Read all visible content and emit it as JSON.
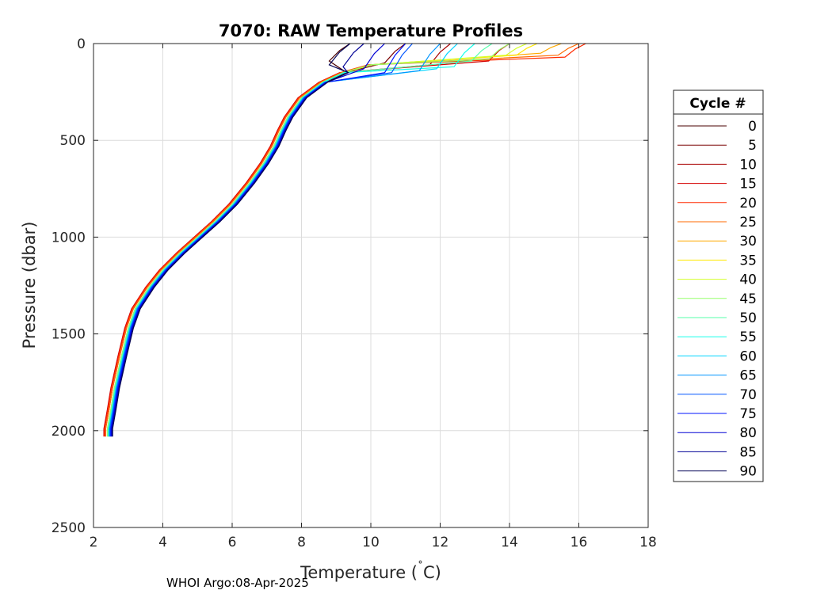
{
  "chart_data": {
    "type": "line",
    "title": "7070: RAW Temperature Profiles",
    "xlabel": "Temperature (°C)",
    "xlabel_main": "Temperature (",
    "xlabel_degree": "˚",
    "xlabel_unit": "C)",
    "ylabel": "Pressure (dbar)",
    "xlim": [
      2,
      18
    ],
    "ylim": [
      0,
      2500
    ],
    "y_reversed": true,
    "xticks": [
      2,
      4,
      6,
      8,
      10,
      12,
      14,
      16,
      18
    ],
    "yticks": [
      0,
      500,
      1000,
      1500,
      2000,
      2500
    ],
    "grid": true,
    "legend": {
      "title": "Cycle #",
      "placement": "outside-right",
      "entries": [
        "0",
        "5",
        "10",
        "15",
        "20",
        "25",
        "30",
        "35",
        "40",
        "45",
        "50",
        "55",
        "60",
        "65",
        "70",
        "75",
        "80",
        "85",
        "90"
      ],
      "colors": [
        "#4a0000",
        "#7a0000",
        "#a80000",
        "#d40000",
        "#ff2a00",
        "#ff6a00",
        "#ffaa00",
        "#ffea00",
        "#d4ff2a",
        "#95ff6a",
        "#55ffaa",
        "#15ffea",
        "#00d5ff",
        "#0095ff",
        "#0055ff",
        "#0015ff",
        "#0000d4",
        "#000095",
        "#000055"
      ]
    },
    "profile_shape": {
      "temperature": [
        16.0,
        12.0,
        10.0,
        9.2,
        8.6,
        8.0,
        7.6,
        7.4,
        7.2,
        6.9,
        6.5,
        6.0,
        5.5,
        5.0,
        4.5,
        4.0,
        3.6,
        3.2,
        3.0,
        2.8,
        2.6,
        2.5,
        2.4,
        2.4
      ],
      "pressure": [
        0,
        60,
        110,
        150,
        200,
        280,
        380,
        450,
        530,
        620,
        720,
        830,
        920,
        1000,
        1080,
        1170,
        1260,
        1370,
        1470,
        1620,
        1780,
        1890,
        1990,
        2030
      ]
    },
    "series": [
      {
        "name": "0",
        "surface_temp": 9.4,
        "cline_depth": 90,
        "offset": 0.1
      },
      {
        "name": "5",
        "surface_temp": 11.0,
        "cline_depth": 100,
        "offset": 0.05
      },
      {
        "name": "10",
        "surface_temp": 12.3,
        "cline_depth": 110,
        "offset": -0.05
      },
      {
        "name": "15",
        "surface_temp": 14.0,
        "cline_depth": 90,
        "offset": -0.1
      },
      {
        "name": "20",
        "surface_temp": 16.2,
        "cline_depth": 70,
        "offset": -0.08
      },
      {
        "name": "25",
        "surface_temp": 16.0,
        "cline_depth": 60,
        "offset": -0.05
      },
      {
        "name": "30",
        "surface_temp": 15.5,
        "cline_depth": 50,
        "offset": 0.0
      },
      {
        "name": "35",
        "surface_temp": 14.8,
        "cline_depth": 60,
        "offset": 0.02
      },
      {
        "name": "40",
        "surface_temp": 14.5,
        "cline_depth": 60,
        "offset": 0.03
      },
      {
        "name": "45",
        "surface_temp": 14.0,
        "cline_depth": 80,
        "offset": 0.0
      },
      {
        "name": "50",
        "surface_temp": 13.5,
        "cline_depth": 90,
        "offset": 0.02
      },
      {
        "name": "55",
        "surface_temp": 13.0,
        "cline_depth": 120,
        "offset": 0.04
      },
      {
        "name": "60",
        "surface_temp": 12.5,
        "cline_depth": 130,
        "offset": 0.05
      },
      {
        "name": "65",
        "surface_temp": 12.0,
        "cline_depth": 140,
        "offset": 0.06
      },
      {
        "name": "70",
        "surface_temp": 11.2,
        "cline_depth": 150,
        "offset": 0.08
      },
      {
        "name": "75",
        "surface_temp": 11.0,
        "cline_depth": 150,
        "offset": 0.1
      },
      {
        "name": "80",
        "surface_temp": 10.4,
        "cline_depth": 130,
        "offset": 0.12
      },
      {
        "name": "85",
        "surface_temp": 9.8,
        "cline_depth": 120,
        "offset": 0.14
      },
      {
        "name": "90",
        "surface_temp": 9.4,
        "cline_depth": 110,
        "offset": 0.15
      }
    ]
  },
  "footer": "WHOI Argo:08-Apr-2025"
}
